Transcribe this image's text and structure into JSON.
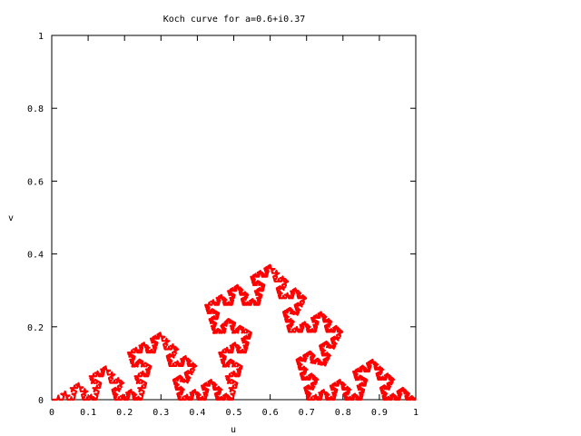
{
  "chart_data": {
    "type": "line",
    "title": "Koch curve for a=0.6+i0.37",
    "xlabel": "u",
    "ylabel": "v",
    "xlim": [
      0,
      1
    ],
    "ylim": [
      0,
      1
    ],
    "x_ticks": [
      "0",
      "0.1",
      "0.2",
      "0.3",
      "0.4",
      "0.5",
      "0.6",
      "0.7",
      "0.8",
      "0.9",
      "1"
    ],
    "y_ticks": [
      "0",
      "0.2",
      "0.4",
      "0.6",
      "0.8",
      "1"
    ],
    "grid": false,
    "legend": "none",
    "curve": {
      "generator": "z -> a*z and z -> a + (1-a)*z",
      "a_real": 0.6,
      "a_imag": 0.37,
      "start": [
        0,
        0
      ],
      "end": [
        1,
        0
      ],
      "apex": [
        0.6,
        0.37
      ]
    },
    "series_color": "#ff0000"
  }
}
